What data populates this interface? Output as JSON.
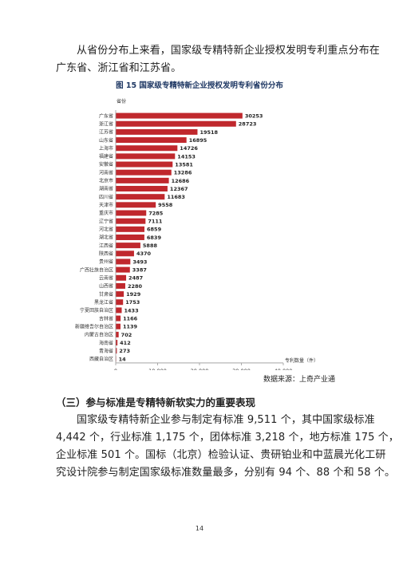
{
  "intro_paragraph": {
    "line1": "从省份分布上来看，国家级专精特新企业授权发明专利重点分布在",
    "line2": "广东省、浙江省和江苏省。"
  },
  "figure": {
    "title": "图 15  国家级专精特新企业授权发明专利省份分布",
    "source": "数据来源：上奇产业通"
  },
  "chart_data": {
    "type": "bar",
    "orientation": "horizontal",
    "ylabel": "省份",
    "xlabel": "专利数量（件）",
    "xlim": [
      0,
      40000
    ],
    "xticks": [
      "0",
      "10,000",
      "20,000",
      "30,000",
      "40,000"
    ],
    "bar_color": "#c0282d",
    "categories": [
      "广东省",
      "浙江省",
      "江苏省",
      "山东省",
      "上海市",
      "福建省",
      "安徽省",
      "河南省",
      "北京市",
      "湖南省",
      "四川省",
      "天津市",
      "重庆市",
      "辽宁省",
      "河北省",
      "湖北省",
      "江西省",
      "陕西省",
      "贵州省",
      "广西壮族自治区",
      "云南省",
      "山西省",
      "甘肃省",
      "黑龙江省",
      "宁夏回族自治区",
      "吉林省",
      "新疆维吾尔自治区",
      "内蒙古自治区",
      "海南省",
      "青海省",
      "西藏自治区"
    ],
    "values": [
      30253,
      28723,
      19518,
      16895,
      14726,
      14153,
      13581,
      13286,
      12686,
      12367,
      11683,
      9558,
      7285,
      7111,
      6859,
      6839,
      5888,
      4370,
      3493,
      3387,
      2487,
      2280,
      1929,
      1753,
      1433,
      1166,
      1139,
      702,
      412,
      273,
      14
    ]
  },
  "section": {
    "heading": "（三）参与标准是专精特新软实力的重要表现"
  },
  "body_paragraph": {
    "line1": "国家级专精特新企业参与制定有标准 9,511 个，其中国家级标准",
    "line2": "4,442 个，行业标准 1,175 个，团体标准 3,218 个，地方标准 175 个，",
    "line3": "企业标准 501 个。国标（北京）检验认证、贵研铂业和中蓝晨光化工研",
    "line4": "究设计院参与制定国家级标准数量最多，分别有 94 个、88 个和 58 个。"
  },
  "page_number": "14"
}
